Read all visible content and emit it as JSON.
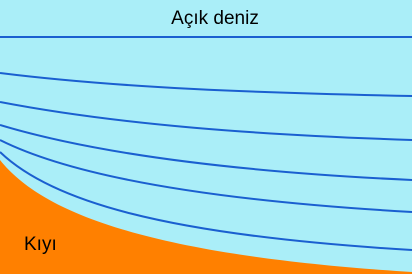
{
  "labels": {
    "sea": "Açık deniz",
    "shore": "Kıyı"
  }
}
